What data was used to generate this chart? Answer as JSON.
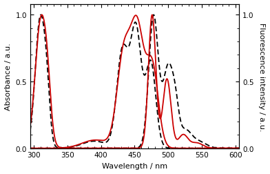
{
  "xlim": [
    295,
    605
  ],
  "ylim": [
    0.0,
    1.08
  ],
  "xlabel": "Wavelength / nm",
  "ylabel_left": "Absorbance / a.u.",
  "ylabel_right": "Fluorescence intensity / a.u.",
  "yticks": [
    0.0,
    0.5,
    1.0
  ],
  "xticks": [
    300,
    350,
    400,
    450,
    500,
    550,
    600
  ],
  "line_color_black": "#000000",
  "line_color_red": "#cc0000",
  "background": "#ffffff",
  "linewidth": 1.3
}
